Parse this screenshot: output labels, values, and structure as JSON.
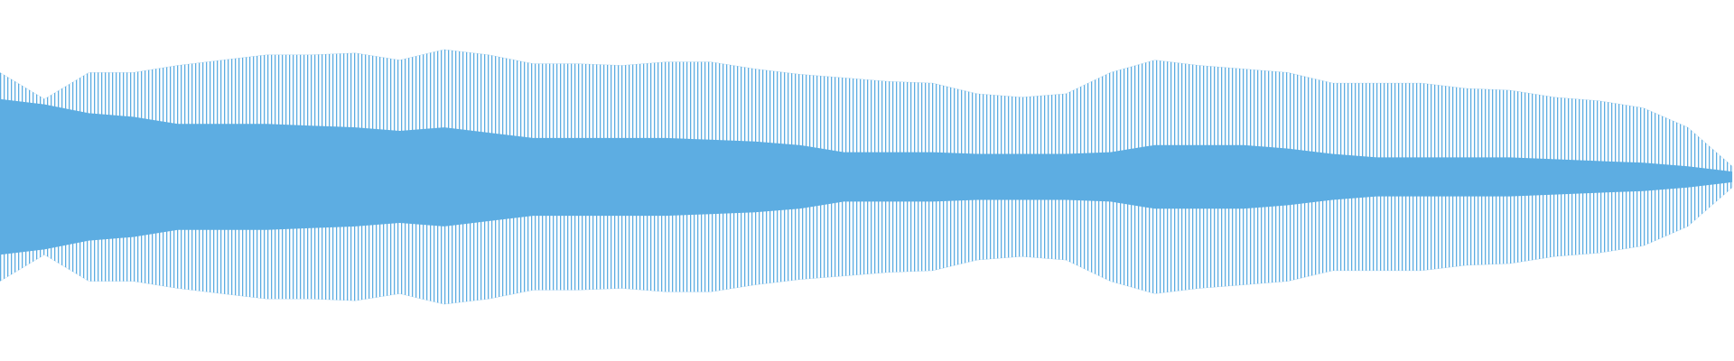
{
  "chart_data": {
    "type": "waveform",
    "ylim": [
      -1,
      1
    ],
    "series": [
      {
        "color": "#5dade2",
        "values": [
          0.59,
          0.44,
          0.59,
          0.59,
          0.63,
          0.66,
          0.69,
          0.69,
          0.7,
          0.66,
          0.72,
          0.69,
          0.64,
          0.64,
          0.63,
          0.65,
          0.65,
          0.61,
          0.58,
          0.56,
          0.54,
          0.53,
          0.47,
          0.45,
          0.47,
          0.59,
          0.66,
          0.63,
          0.61,
          0.59,
          0.53,
          0.53,
          0.53,
          0.5,
          0.49,
          0.45,
          0.43,
          0.39,
          0.28,
          0.06
        ]
      },
      {
        "color": "#5dade2",
        "values": [
          0.44,
          0.41,
          0.36,
          0.34,
          0.3,
          0.3,
          0.3,
          0.29,
          0.28,
          0.26,
          0.28,
          0.25,
          0.22,
          0.22,
          0.22,
          0.22,
          0.21,
          0.2,
          0.18,
          0.14,
          0.14,
          0.14,
          0.13,
          0.13,
          0.13,
          0.14,
          0.18,
          0.18,
          0.18,
          0.16,
          0.13,
          0.11,
          0.11,
          0.11,
          0.11,
          0.1,
          0.09,
          0.08,
          0.06,
          0.03
        ]
      }
    ]
  }
}
